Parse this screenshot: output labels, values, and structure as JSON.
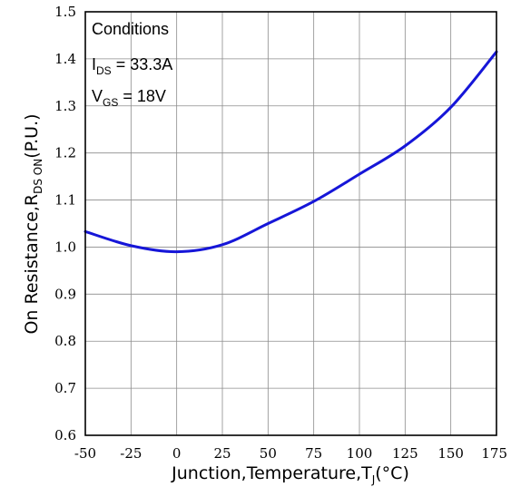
{
  "chart_data": {
    "type": "line",
    "x": [
      -50,
      -25,
      0,
      25,
      50,
      75,
      100,
      125,
      150,
      175
    ],
    "series": [
      {
        "values": [
          1.033,
          1.003,
          0.99,
          1.005,
          1.05,
          1.097,
          1.155,
          1.215,
          1.297,
          1.415
        ],
        "color": "#1616d8"
      }
    ],
    "xlim": [
      -50,
      175
    ],
    "ylim": [
      0.6,
      1.5
    ],
    "xticks": [
      "-50",
      "-25",
      "0",
      "25",
      "50",
      "75",
      "100",
      "125",
      "150",
      "175"
    ],
    "yticks": [
      "0.6",
      "0.7",
      "0.8",
      "0.9",
      "1.0",
      "1.1",
      "1.2",
      "1.3",
      "1.4",
      "1.5"
    ],
    "grid": true,
    "xlabel": {
      "main": "Junction,Temperature,T",
      "sub": "J",
      "unit": "(°C)"
    },
    "ylabel": {
      "main": "On Resistance,R",
      "sub": "DS ON",
      "unit": "(P.U.)"
    },
    "annotation": {
      "title": "Conditions",
      "line1": {
        "sym": "I",
        "sub": "DS",
        "value": " = 33.3A"
      },
      "line2": {
        "sym": "V",
        "sub": "GS",
        "value": " = 18V"
      }
    }
  }
}
